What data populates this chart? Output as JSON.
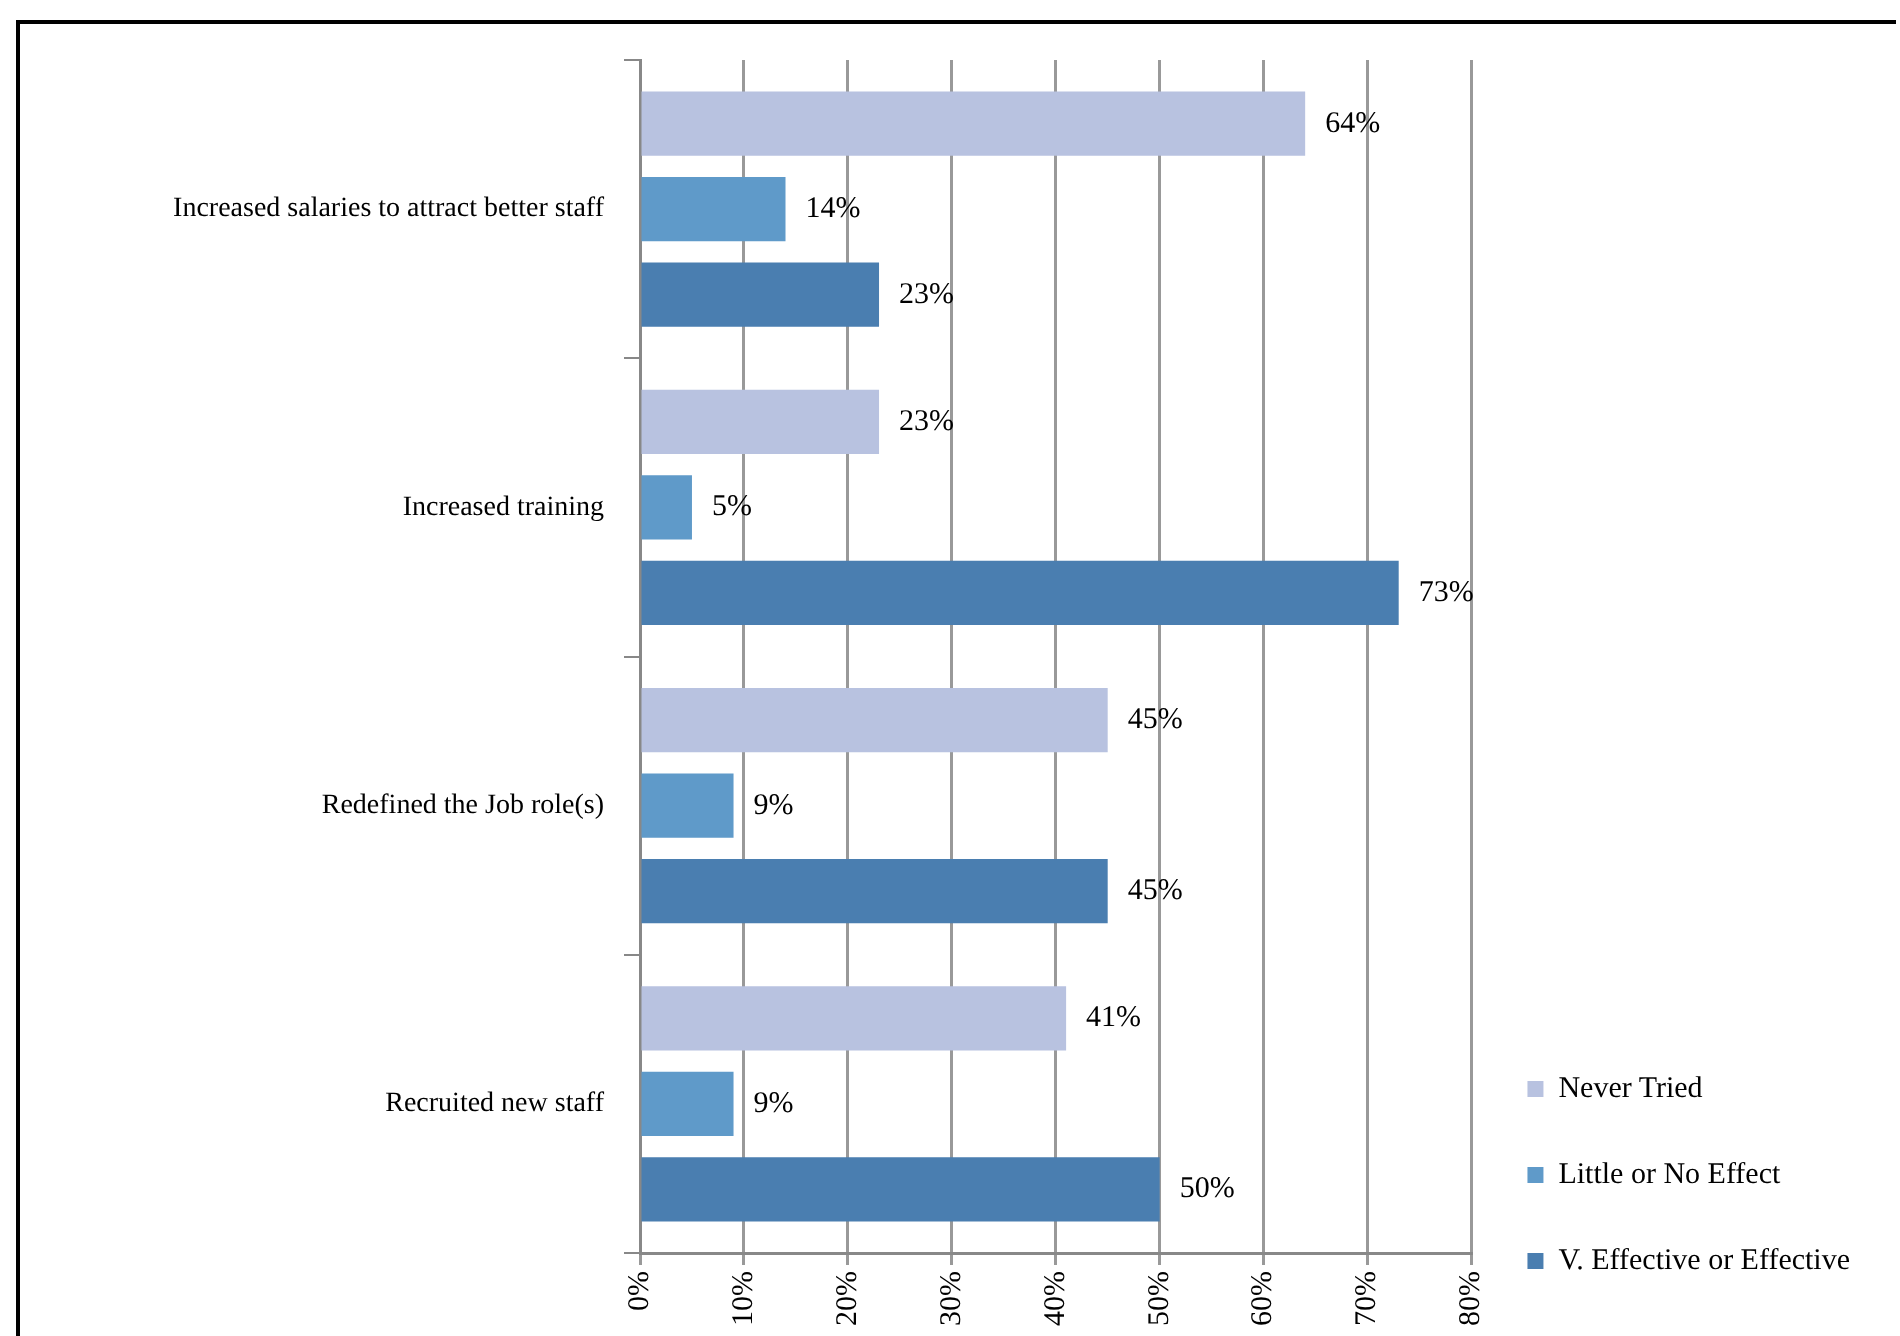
{
  "chart_data": {
    "type": "bar",
    "orientation": "horizontal",
    "categories": [
      "Increased salaries to attract better staff",
      "Increased training",
      "Redefined the Job role(s)",
      "Recruited new staff"
    ],
    "series": [
      {
        "name": "Never Tried",
        "color": "#b8c2e0",
        "values": [
          64,
          23,
          45,
          41
        ],
        "value_labels": [
          "64%",
          "23%",
          "45%",
          "41%"
        ]
      },
      {
        "name": "Little or No Effect",
        "color": "#5f9ac9",
        "values": [
          14,
          5,
          9,
          9
        ],
        "value_labels": [
          "14%",
          "5%",
          "9%",
          "9%"
        ]
      },
      {
        "name": "V. Effective or Effective",
        "color": "#4a7eb0",
        "values": [
          23,
          73,
          45,
          50
        ],
        "value_labels": [
          "23%",
          "73%",
          "45%",
          "50%"
        ]
      }
    ],
    "xlim": [
      0,
      80
    ],
    "xticks": [
      {
        "value": 0,
        "label": "0%"
      },
      {
        "value": 10,
        "label": "10%"
      },
      {
        "value": 20,
        "label": "20%"
      },
      {
        "value": 30,
        "label": "30%"
      },
      {
        "value": 40,
        "label": "40%"
      },
      {
        "value": 50,
        "label": "50%"
      },
      {
        "value": 60,
        "label": "60%"
      },
      {
        "value": 70,
        "label": "70%"
      },
      {
        "value": 80,
        "label": "80%"
      }
    ],
    "grid": "x",
    "legend": "bottom right"
  }
}
